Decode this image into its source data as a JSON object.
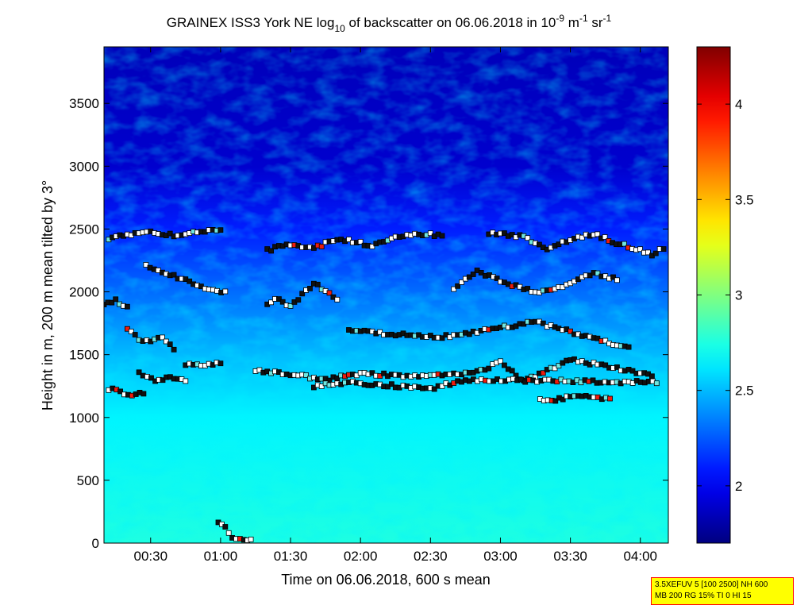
{
  "chart_data": {
    "type": "heatmap",
    "title": {
      "prefix": "GRAINEX ISS3 York NE log",
      "sub": "10",
      "middle": " of backscatter on 06.06.2018 in 10",
      "exp1": "-9",
      "unit1": " m",
      "exp2": "-1",
      "unit2": " sr",
      "exp3": "-1"
    },
    "xlabel": "Time on 06.06.2018, 600 s mean",
    "ylabel": "Height in m, 200 m mean tilted by 3°",
    "xlim": [
      "00:10",
      "04:12"
    ],
    "ylim": [
      0,
      3950
    ],
    "x_ticks": [
      "00:30",
      "01:00",
      "01:30",
      "02:00",
      "02:30",
      "03:00",
      "03:30",
      "04:00"
    ],
    "y_ticks": [
      0,
      500,
      1000,
      1500,
      2000,
      2500,
      3000,
      3500
    ],
    "colorbar": {
      "min": 1.7,
      "max": 4.3,
      "ticks": [
        "2",
        "2.5",
        "3",
        "3.5",
        "4"
      ],
      "colormap": "jet"
    },
    "field_profile": [
      {
        "height": 0,
        "value": 2.75
      },
      {
        "height": 1000,
        "value": 2.65
      },
      {
        "height": 1500,
        "value": 2.5
      },
      {
        "height": 2000,
        "value": 2.3
      },
      {
        "height": 2500,
        "value": 2.1
      },
      {
        "height": 3000,
        "value": 1.9
      },
      {
        "height": 3950,
        "value": 1.85
      }
    ],
    "layer_markers": [
      {
        "name": "layer-2450",
        "points": [
          [
            "00:12",
            2420
          ],
          [
            "00:20",
            2460
          ],
          [
            "00:30",
            2470
          ],
          [
            "00:40",
            2450
          ],
          [
            "00:50",
            2480
          ],
          [
            "01:00",
            2490
          ]
        ]
      },
      {
        "name": "layer-2150",
        "points": [
          [
            "00:28",
            2220
          ],
          [
            "00:35",
            2150
          ],
          [
            "00:45",
            2100
          ],
          [
            "00:55",
            2020
          ],
          [
            "01:02",
            2000
          ]
        ]
      },
      {
        "name": "layer-1900",
        "points": [
          [
            "00:10",
            1900
          ],
          [
            "00:15",
            1930
          ],
          [
            "00:20",
            1880
          ]
        ]
      },
      {
        "name": "layer-1600",
        "points": [
          [
            "00:20",
            1700
          ],
          [
            "00:25",
            1620
          ],
          [
            "00:30",
            1600
          ],
          [
            "00:35",
            1640
          ],
          [
            "00:40",
            1550
          ]
        ]
      },
      {
        "name": "layer-1420",
        "points": [
          [
            "00:45",
            1420
          ],
          [
            "00:55",
            1420
          ],
          [
            "01:00",
            1430
          ]
        ]
      },
      {
        "name": "layer-1300",
        "points": [
          [
            "00:25",
            1350
          ],
          [
            "00:32",
            1300
          ],
          [
            "00:40",
            1320
          ],
          [
            "00:45",
            1300
          ]
        ]
      },
      {
        "name": "layer-1200",
        "points": [
          [
            "00:12",
            1230
          ],
          [
            "00:17",
            1200
          ],
          [
            "00:22",
            1180
          ],
          [
            "00:27",
            1200
          ]
        ]
      },
      {
        "name": "layer-low",
        "points": [
          [
            "00:59",
            160
          ],
          [
            "01:02",
            120
          ],
          [
            "01:05",
            40
          ],
          [
            "01:10",
            30
          ],
          [
            "01:13",
            30
          ]
        ]
      },
      {
        "name": "layer-2400-mid",
        "points": [
          [
            "01:20",
            2330
          ],
          [
            "01:30",
            2380
          ],
          [
            "01:40",
            2350
          ],
          [
            "01:50",
            2420
          ],
          [
            "02:00",
            2390
          ],
          [
            "02:05",
            2360
          ],
          [
            "02:15",
            2430
          ],
          [
            "02:25",
            2460
          ],
          [
            "02:35",
            2450
          ]
        ]
      },
      {
        "name": "layer-2450-late",
        "points": [
          [
            "02:55",
            2470
          ],
          [
            "03:00",
            2460
          ],
          [
            "03:10",
            2440
          ],
          [
            "03:20",
            2340
          ],
          [
            "03:30",
            2420
          ],
          [
            "03:40",
            2460
          ],
          [
            "03:48",
            2400
          ],
          [
            "04:05",
            2300
          ],
          [
            "04:10",
            2350
          ]
        ]
      },
      {
        "name": "layer-1950-mid",
        "points": [
          [
            "01:20",
            1900
          ],
          [
            "01:25",
            1950
          ],
          [
            "01:30",
            1880
          ],
          [
            "01:40",
            2070
          ],
          [
            "01:50",
            1940
          ]
        ]
      },
      {
        "name": "layer-2100-late",
        "points": [
          [
            "02:40",
            2030
          ],
          [
            "02:45",
            2100
          ],
          [
            "02:50",
            2160
          ],
          [
            "02:57",
            2120
          ],
          [
            "03:00",
            2080
          ],
          [
            "03:15",
            2000
          ],
          [
            "03:25",
            2030
          ],
          [
            "03:40",
            2150
          ],
          [
            "03:50",
            2100
          ]
        ]
      },
      {
        "name": "layer-1680",
        "points": [
          [
            "01:55",
            1700
          ],
          [
            "02:10",
            1670
          ],
          [
            "02:25",
            1650
          ],
          [
            "02:35",
            1640
          ],
          [
            "03:15",
            1760
          ],
          [
            "03:55",
            1550
          ]
        ]
      },
      {
        "name": "layer-1380",
        "points": [
          [
            "01:15",
            1370
          ],
          [
            "01:25",
            1360
          ],
          [
            "01:45",
            1300
          ],
          [
            "02:00",
            1350
          ],
          [
            "02:10",
            1340
          ],
          [
            "02:25",
            1330
          ],
          [
            "02:50",
            1360
          ],
          [
            "03:00",
            1440
          ],
          [
            "03:10",
            1290
          ],
          [
            "03:30",
            1460
          ],
          [
            "04:05",
            1340
          ]
        ]
      },
      {
        "name": "layer-1150",
        "points": [
          [
            "03:17",
            1140
          ],
          [
            "03:22",
            1130
          ],
          [
            "03:30",
            1170
          ],
          [
            "03:40",
            1160
          ],
          [
            "03:47",
            1150
          ]
        ]
      },
      {
        "name": "layer-1250",
        "points": [
          [
            "01:40",
            1250
          ],
          [
            "01:55",
            1280
          ],
          [
            "02:30",
            1230
          ],
          [
            "02:45",
            1300
          ],
          [
            "04:07",
            1280
          ]
        ]
      }
    ]
  },
  "stamp": {
    "line1": "3.5XEFUV 5 [100 2500] NH 600",
    "line2": "MB 200 RG 15% TI 0 HI 15"
  }
}
